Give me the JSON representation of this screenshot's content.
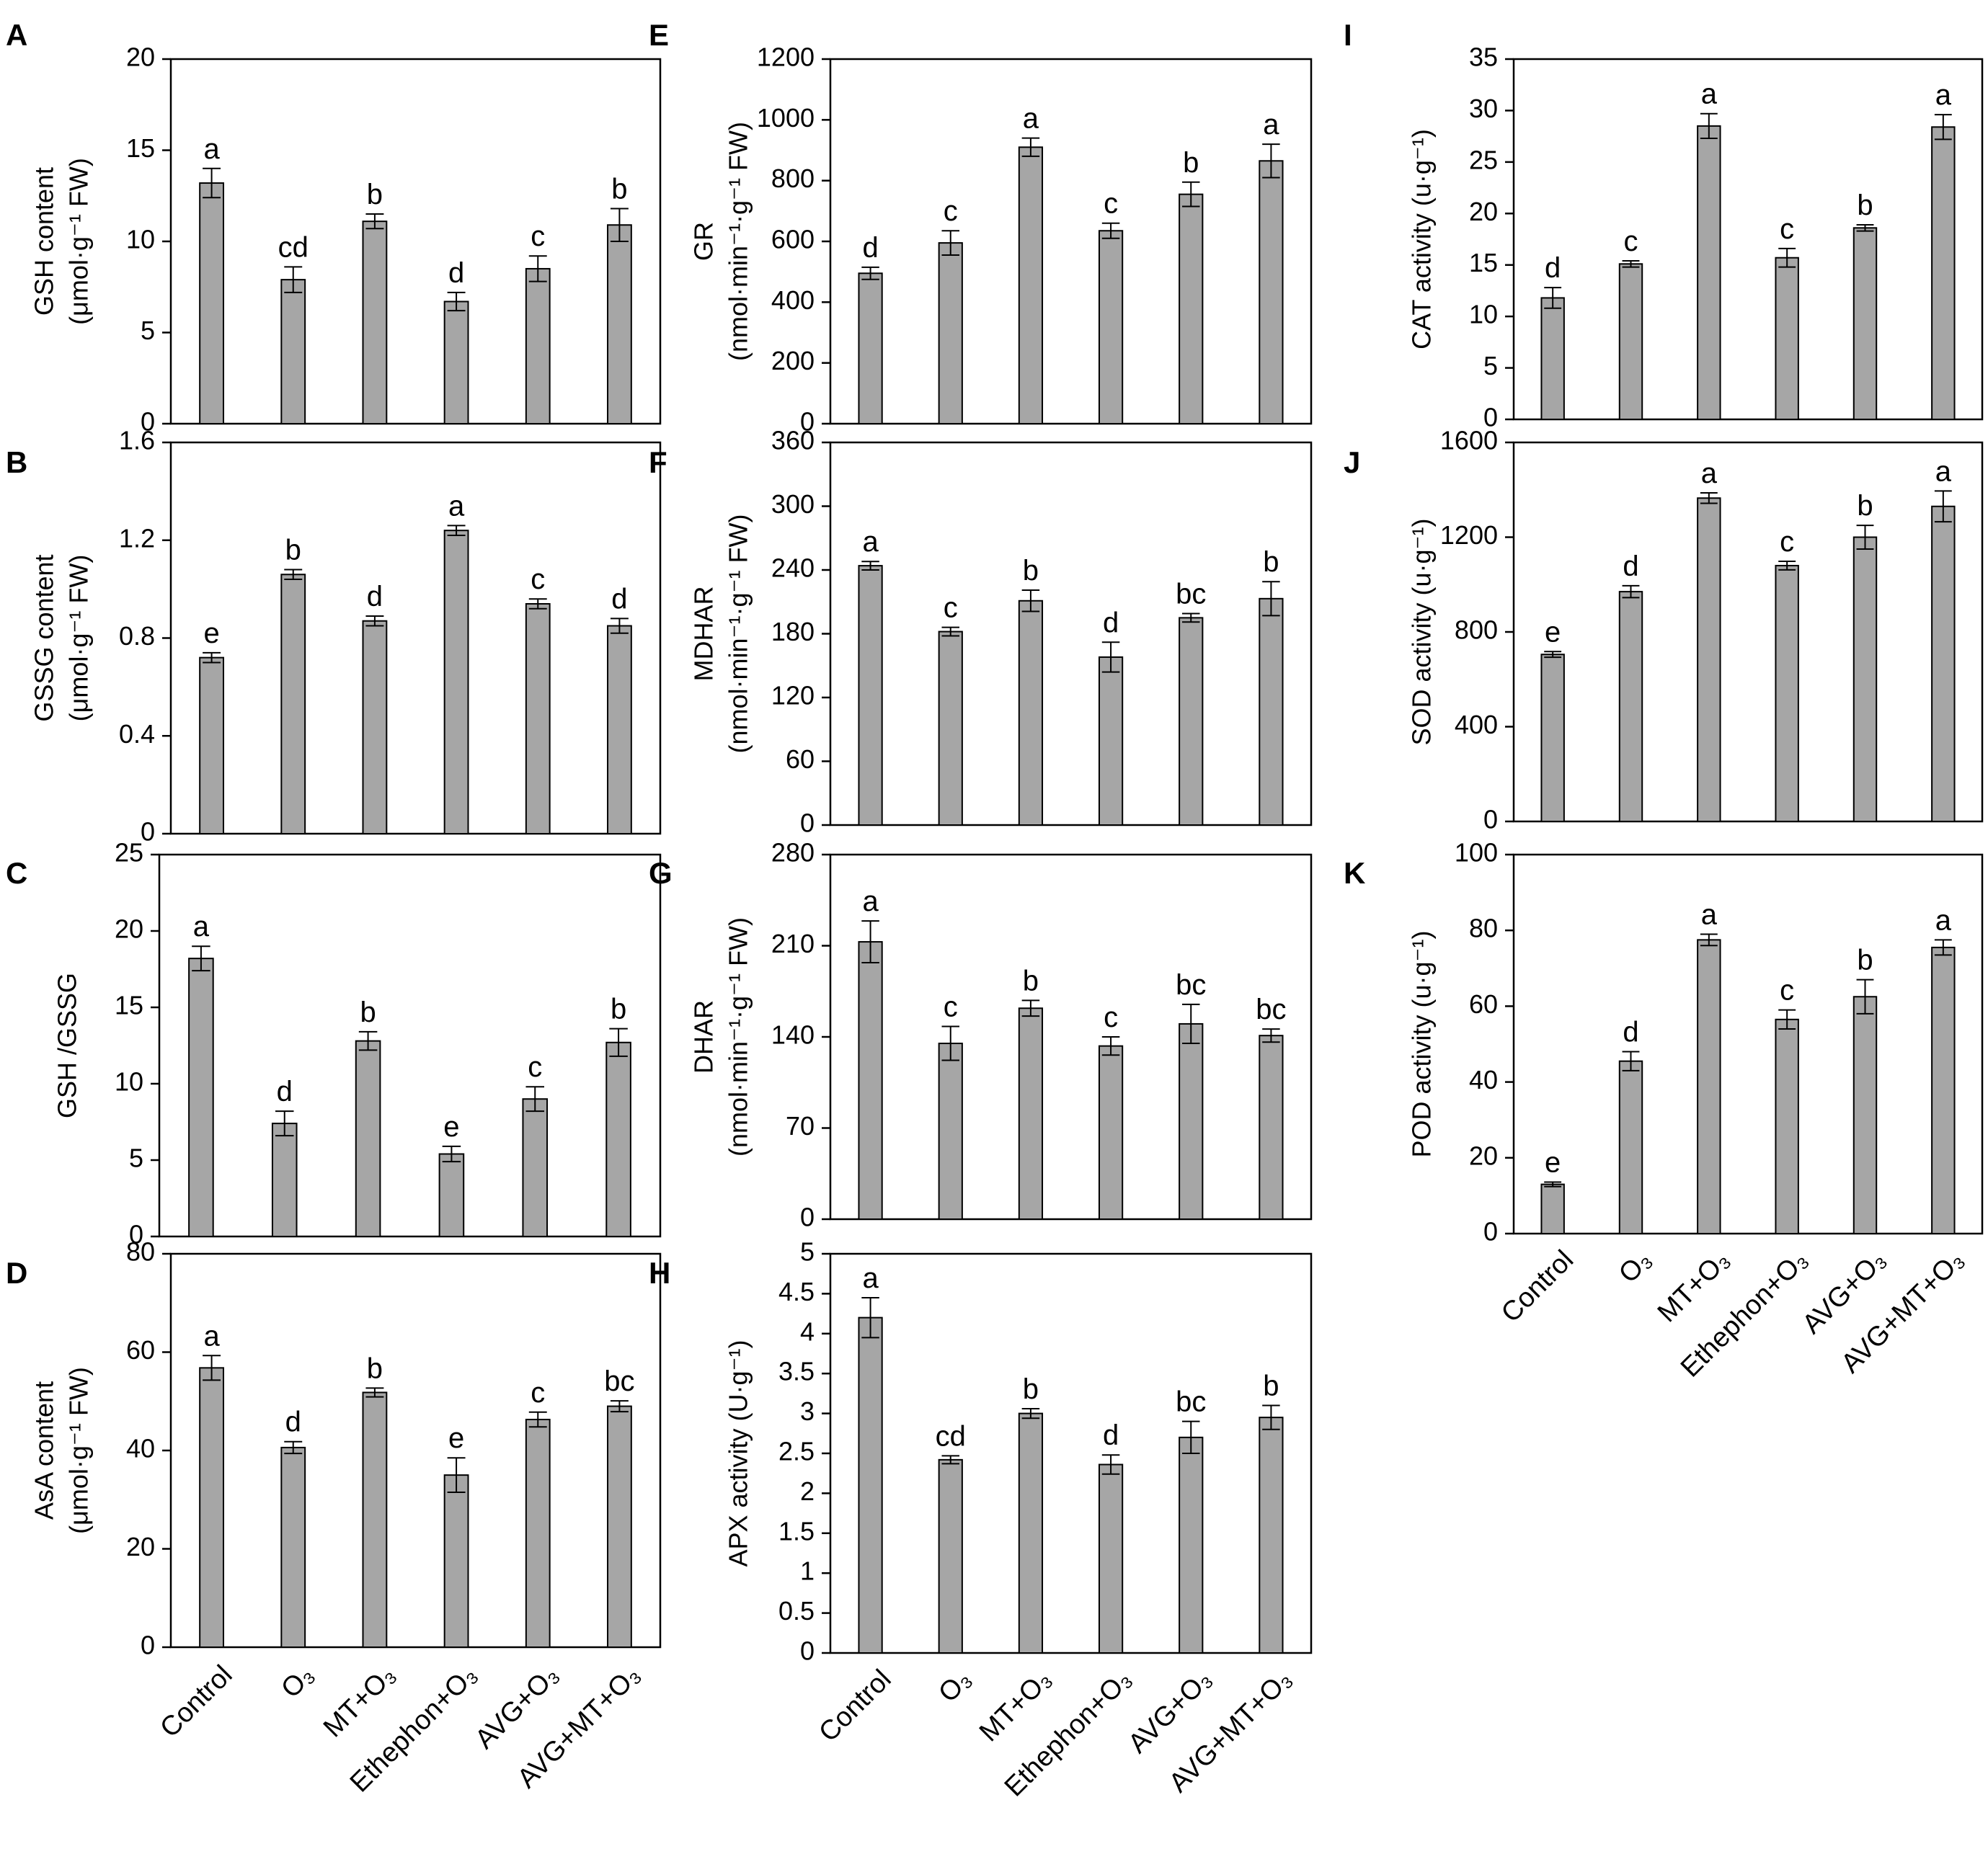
{
  "figure": {
    "categories": [
      "Control",
      "O₃",
      "MT+O₃",
      "Ethephon+O₃",
      "AVG+O₃",
      "AVG+MT+O₃"
    ]
  },
  "colors": {
    "bar_fill": "#a6a6a6",
    "bar_stroke": "#000000",
    "axis": "#000000",
    "background": "#ffffff"
  },
  "chart_data": [
    {
      "panel": "A",
      "type": "bar",
      "ylabel_lines": [
        "GSH content",
        "(μmol·g⁻¹ FW)"
      ],
      "ylim": [
        0,
        20
      ],
      "ticks": [
        0,
        5,
        10,
        15,
        20
      ],
      "values": [
        13.2,
        7.9,
        11.1,
        6.7,
        8.5,
        10.9
      ],
      "errors": [
        0.8,
        0.7,
        0.4,
        0.5,
        0.7,
        0.9
      ],
      "letters": [
        "a",
        "cd",
        "b",
        "d",
        "c",
        "b"
      ]
    },
    {
      "panel": "B",
      "type": "bar",
      "ylabel_lines": [
        "GSSG content",
        "(μmol·g⁻¹ FW)"
      ],
      "ylim": [
        0,
        1.6
      ],
      "ticks": [
        0,
        0.4,
        0.8,
        1.2,
        1.6
      ],
      "values": [
        0.72,
        1.06,
        0.87,
        1.24,
        0.94,
        0.85
      ],
      "errors": [
        0.02,
        0.02,
        0.02,
        0.02,
        0.02,
        0.03
      ],
      "letters": [
        "e",
        "b",
        "d",
        "a",
        "c",
        "d"
      ]
    },
    {
      "panel": "C",
      "type": "bar",
      "ylabel_lines": [
        "GSH /GSSG"
      ],
      "ylim": [
        0,
        25
      ],
      "ticks": [
        0,
        5,
        10,
        15,
        20,
        25
      ],
      "values": [
        18.2,
        7.4,
        12.8,
        5.4,
        9.0,
        12.7
      ],
      "errors": [
        0.8,
        0.8,
        0.6,
        0.5,
        0.8,
        0.9
      ],
      "letters": [
        "a",
        "d",
        "b",
        "e",
        "c",
        "b"
      ]
    },
    {
      "panel": "D",
      "type": "bar",
      "ylabel_lines": [
        "AsA content",
        "(μmol·g⁻¹ FW)"
      ],
      "ylim": [
        0,
        80
      ],
      "ticks": [
        0,
        20,
        40,
        60,
        80
      ],
      "values": [
        56.8,
        40.6,
        51.8,
        35.0,
        46.3,
        49.0
      ],
      "errors": [
        2.5,
        1.2,
        0.9,
        3.5,
        1.5,
        1.1
      ],
      "letters": [
        "a",
        "d",
        "b",
        "e",
        "c",
        "bc"
      ]
    },
    {
      "panel": "E",
      "type": "bar",
      "ylabel_lines": [
        "GR",
        "(nmol·min⁻¹·g⁻¹ FW)"
      ],
      "ylim": [
        0,
        1200
      ],
      "ticks": [
        0,
        200,
        400,
        600,
        800,
        1000,
        1200
      ],
      "values": [
        495,
        595,
        910,
        635,
        755,
        865
      ],
      "errors": [
        20,
        40,
        30,
        25,
        40,
        55
      ],
      "letters": [
        "d",
        "c",
        "a",
        "c",
        "b",
        "a"
      ]
    },
    {
      "panel": "F",
      "type": "bar",
      "ylabel_lines": [
        "MDHAR",
        "(nmol·min⁻¹·g⁻¹ FW)"
      ],
      "ylim": [
        0,
        360
      ],
      "ticks": [
        0,
        60,
        120,
        180,
        240,
        300,
        360
      ],
      "values": [
        244,
        182,
        211,
        158,
        195,
        213
      ],
      "errors": [
        4,
        4,
        10,
        14,
        4,
        16
      ],
      "letters": [
        "a",
        "c",
        "b",
        "d",
        "bc",
        "b"
      ]
    },
    {
      "panel": "G",
      "type": "bar",
      "ylabel_lines": [
        "DHAR",
        "(nmol·min⁻¹·g⁻¹ FW)"
      ],
      "ylim": [
        0,
        280
      ],
      "ticks": [
        0,
        70,
        140,
        210,
        280
      ],
      "values": [
        213,
        135,
        162,
        133,
        150,
        141
      ],
      "errors": [
        16,
        13,
        6,
        7,
        15,
        5
      ],
      "letters": [
        "a",
        "c",
        "b",
        "c",
        "bc",
        "bc"
      ]
    },
    {
      "panel": "H",
      "type": "bar",
      "ylabel_lines": [
        "APX activity (U·g⁻¹)"
      ],
      "ylim": [
        0,
        5
      ],
      "ticks": [
        0,
        0.5,
        1,
        1.5,
        2,
        2.5,
        3,
        3.5,
        4,
        4.5,
        5
      ],
      "tick_labels": [
        "0",
        "0.5",
        "1",
        "1.5",
        "2",
        "2.5",
        "3",
        "3.5",
        "4",
        "4.5",
        "5"
      ],
      "values": [
        4.2,
        2.42,
        3.0,
        2.36,
        2.7,
        2.95
      ],
      "errors": [
        0.25,
        0.05,
        0.06,
        0.12,
        0.2,
        0.15
      ],
      "letters": [
        "a",
        "cd",
        "b",
        "d",
        "bc",
        "b"
      ]
    },
    {
      "panel": "I",
      "type": "bar",
      "ylabel_lines": [
        "CAT activity (u·g⁻¹)"
      ],
      "ylim": [
        0,
        35
      ],
      "ticks": [
        0,
        5,
        10,
        15,
        20,
        25,
        30,
        35
      ],
      "values": [
        11.8,
        15.1,
        28.5,
        15.7,
        18.6,
        28.4
      ],
      "errors": [
        1.0,
        0.3,
        1.2,
        0.9,
        0.3,
        1.2
      ],
      "letters": [
        "d",
        "c",
        "a",
        "c",
        "b",
        "a"
      ]
    },
    {
      "panel": "J",
      "type": "bar",
      "ylabel_lines": [
        "SOD activity (u·g⁻¹)"
      ],
      "ylim": [
        0,
        1600
      ],
      "ticks": [
        0,
        400,
        800,
        1200,
        1600
      ],
      "values": [
        705,
        970,
        1365,
        1080,
        1200,
        1330
      ],
      "errors": [
        12,
        25,
        22,
        18,
        50,
        65
      ],
      "letters": [
        "e",
        "d",
        "a",
        "c",
        "b",
        "a"
      ]
    },
    {
      "panel": "K",
      "type": "bar",
      "ylabel_lines": [
        "POD activity (u·g⁻¹)"
      ],
      "ylim": [
        0,
        100
      ],
      "ticks": [
        0,
        20,
        40,
        60,
        80,
        100
      ],
      "values": [
        13,
        45.5,
        77.5,
        56.5,
        62.5,
        75.5
      ],
      "errors": [
        0.6,
        2.5,
        1.5,
        2.5,
        4.5,
        2.0
      ],
      "letters": [
        "e",
        "d",
        "a",
        "c",
        "b",
        "a"
      ]
    }
  ]
}
